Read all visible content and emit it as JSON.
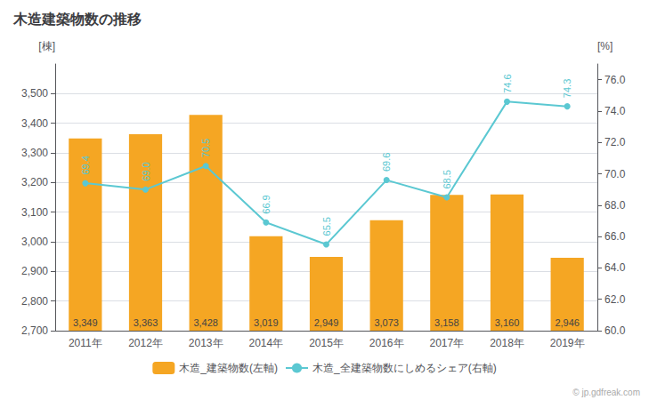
{
  "chart_data": {
    "type": "bar",
    "title": "木造建築物数の推移",
    "categories": [
      "2011年",
      "2012年",
      "2013年",
      "2014年",
      "2015年",
      "2016年",
      "2017年",
      "2018年",
      "2019年"
    ],
    "series": [
      {
        "name": "木造_建築物数(左軸)",
        "type": "bar",
        "color": "#f5a623",
        "values": [
          3349,
          3363,
          3428,
          3019,
          2949,
          3073,
          3158,
          3160,
          2946
        ],
        "value_labels": [
          "3,349",
          "3,363",
          "3,428",
          "3,019",
          "2,949",
          "3,073",
          "3,158",
          "3,160",
          "2,946"
        ]
      },
      {
        "name": "木造_全建築物数にしめるシェア(右軸)",
        "type": "line",
        "axis": "y2",
        "color": "#5bc8d2",
        "marker": "circle",
        "values": [
          69.4,
          69.0,
          70.5,
          66.9,
          65.5,
          69.6,
          68.5,
          74.6,
          74.3
        ],
        "value_labels": [
          "69.4",
          "69.0",
          "70.5",
          "66.9",
          "65.5",
          "69.6",
          "68.5",
          "74.6",
          "74.3"
        ]
      }
    ],
    "ylabel": "[棟]",
    "y2label": "[%]",
    "ylim": [
      2700,
      3600
    ],
    "yticks": [
      {
        "value": 2700,
        "label": "2,700"
      },
      {
        "value": 2800,
        "label": "2,800"
      },
      {
        "value": 2900,
        "label": "2,900"
      },
      {
        "value": 3000,
        "label": "3,000"
      },
      {
        "value": 3100,
        "label": "3,100"
      },
      {
        "value": 3200,
        "label": "3,200"
      },
      {
        "value": 3300,
        "label": "3,300"
      },
      {
        "value": 3400,
        "label": "3,400"
      },
      {
        "value": 3500,
        "label": "3,500"
      }
    ],
    "y2lim": [
      60.0,
      77.0
    ],
    "y2ticks": [
      {
        "value": 60.0,
        "label": "60.0"
      },
      {
        "value": 62.0,
        "label": "62.0"
      },
      {
        "value": 64.0,
        "label": "64.0"
      },
      {
        "value": 66.0,
        "label": "66.0"
      },
      {
        "value": 68.0,
        "label": "68.0"
      },
      {
        "value": 70.0,
        "label": "70.0"
      },
      {
        "value": 72.0,
        "label": "72.0"
      },
      {
        "value": 74.0,
        "label": "74.0"
      },
      {
        "value": 76.0,
        "label": "76.0"
      }
    ],
    "grid": true,
    "data_labels": true,
    "legend": "bottom",
    "annotations": [
      "© jp.gdfreak.com"
    ]
  }
}
